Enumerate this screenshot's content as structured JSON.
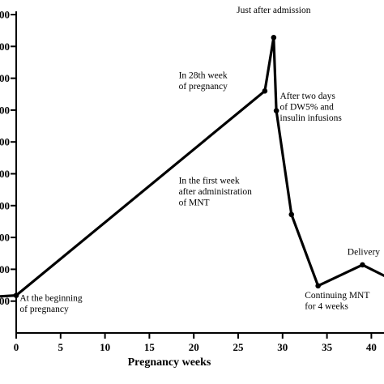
{
  "chart_data": {
    "type": "line",
    "title": "",
    "xlabel": "Pregnancy weeks",
    "ylabel": "",
    "xlim": [
      -3,
      42.5
    ],
    "ylim": [
      0,
      10.9
    ],
    "x_ticks": [
      0,
      5,
      10,
      15,
      20,
      25,
      30,
      35,
      40
    ],
    "x_tick_labels": [
      "0",
      "5",
      "10",
      "15",
      "20",
      "25",
      "30",
      "35",
      "40"
    ],
    "y_ticks": [
      1,
      2,
      3,
      4,
      5,
      6,
      7,
      8,
      9,
      10
    ],
    "y_tick_labels": [
      "00",
      "00",
      "00",
      "00",
      "00",
      "00",
      "00",
      "00",
      "00",
      "00"
    ],
    "grid": false,
    "series": [
      {
        "points": [
          {
            "x": -3,
            "y": 1.13
          },
          {
            "x": 0,
            "y": 1.18
          },
          {
            "x": 28,
            "y": 7.6
          },
          {
            "x": 29,
            "y": 9.28
          },
          {
            "x": 29.3,
            "y": 6.98
          },
          {
            "x": 31,
            "y": 3.72
          },
          {
            "x": 34,
            "y": 1.48
          },
          {
            "x": 39,
            "y": 2.14
          },
          {
            "x": 42.5,
            "y": 1.65
          }
        ]
      }
    ],
    "marker_x": [
      0,
      28,
      29,
      29.3,
      31,
      34,
      39
    ],
    "annotations": [
      {
        "lines": [
          "Just after admission"
        ],
        "anchor": "middle",
        "tx": 29,
        "ty": 10.05
      },
      {
        "lines": [
          "In 28th week",
          "of pregnancy"
        ],
        "anchor": "start",
        "tx": 18.3,
        "ty": 8.0
      },
      {
        "lines": [
          "After two days",
          "of DW5% and",
          "insulin infusions"
        ],
        "anchor": "start",
        "tx": 29.7,
        "ty": 7.35
      },
      {
        "lines": [
          "In the first week",
          "after administration",
          "of MNT"
        ],
        "anchor": "start",
        "tx": 18.3,
        "ty": 4.7
      },
      {
        "lines": [
          "At the beginning",
          "of pregnancy"
        ],
        "anchor": "start",
        "tx": 0.4,
        "ty": 1.0
      },
      {
        "lines": [
          "Continuing MNT",
          "for 4 weeks"
        ],
        "anchor": "start",
        "tx": 32.5,
        "ty": 1.1
      },
      {
        "lines": [
          "Delivery"
        ],
        "anchor": "start",
        "tx": 37.3,
        "ty": 2.45
      }
    ]
  }
}
